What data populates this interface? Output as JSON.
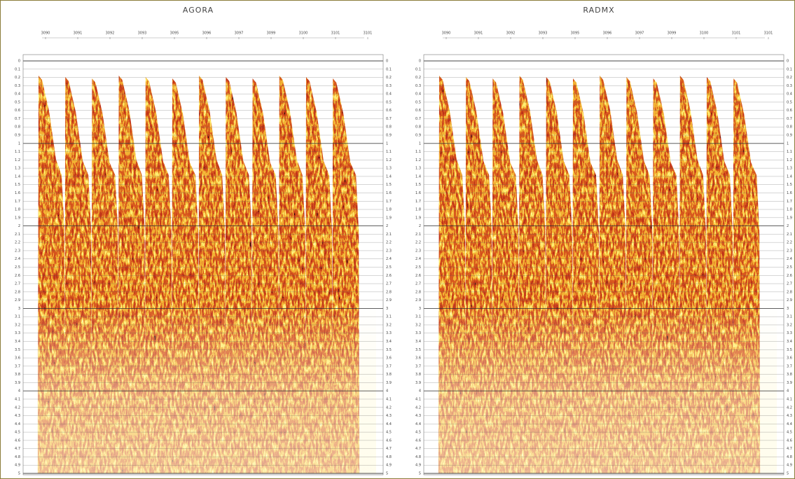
{
  "panels": [
    {
      "title": "AGORA",
      "shot_labels": [
        "3090",
        "3091",
        "3092",
        "3093",
        "3095",
        "3096",
        "3097",
        "3099",
        "3100",
        "3101",
        "3101"
      ]
    },
    {
      "title": "RADMX",
      "shot_labels": [
        "3090",
        "3091",
        "3092",
        "3093",
        "3095",
        "3096",
        "3097",
        "3099",
        "3100",
        "3101",
        "3101"
      ]
    }
  ],
  "time_labels": [
    "0",
    "0.1",
    "0.2",
    "0.3",
    "0.4",
    "0.5",
    "0.6",
    "0.7",
    "0.8",
    "0.9",
    "1",
    "1.1",
    "1.2",
    "1.3",
    "1.4",
    "1.5",
    "1.6",
    "1.7",
    "1.8",
    "1.9",
    "2",
    "2.1",
    "2.2",
    "2.3",
    "2.4",
    "2.5",
    "2.6",
    "2.7",
    "2.8",
    "2.9",
    "3",
    "3.1",
    "3.2",
    "3.3",
    "3.4",
    "3.5",
    "3.6",
    "3.7",
    "3.8",
    "3.9",
    "4",
    "4.1",
    "4.2",
    "4.3",
    "4.4",
    "4.5",
    "4.6",
    "4.7",
    "4.8",
    "4.9",
    "5"
  ]
}
